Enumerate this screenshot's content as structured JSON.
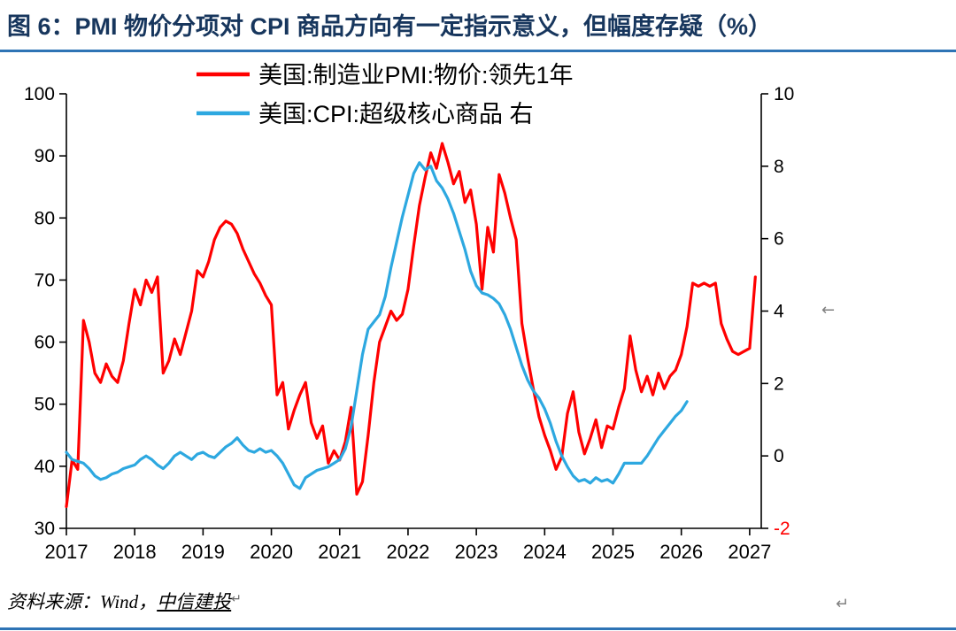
{
  "title": "图 6：PMI 物价分项对 CPI 商品方向有一定指示意义，但幅度存疑（%）",
  "source": {
    "prefix": "资料来源：Wind，",
    "link": "中信建投",
    "return_mark": "↵"
  },
  "marks": {
    "mid_right": "←",
    "bottom_right": "↵"
  },
  "colors": {
    "title": "#17365D",
    "rule": "#2E74B5",
    "pmi_line": "#FF0000",
    "cpi_line": "#2DA8E0",
    "negative_tick": "#FF0000"
  },
  "chart_data": {
    "type": "line",
    "title": "",
    "x_range": [
      2017,
      2027.17
    ],
    "x_ticks": [
      2017,
      2018,
      2019,
      2020,
      2021,
      2022,
      2023,
      2024,
      2025,
      2026,
      2027
    ],
    "left_axis": {
      "min": 30,
      "max": 100,
      "ticks": [
        30,
        40,
        50,
        60,
        70,
        80,
        90,
        100
      ]
    },
    "right_axis": {
      "min": -2,
      "max": 10,
      "ticks": [
        -2,
        0,
        2,
        4,
        6,
        8,
        10
      ],
      "negative_color": "#FF0000"
    },
    "grid": false,
    "legend_position": "top-center",
    "points_per_year": 12,
    "series": [
      {
        "name": "美国:制造业PMI:物价:领先1年",
        "axis": "left",
        "color": "#FF0000",
        "start": 2017,
        "values": [
          33.5,
          41,
          39.5,
          63.5,
          60,
          55,
          53.5,
          56.5,
          54.5,
          53.5,
          57,
          63,
          68.5,
          66,
          70,
          68,
          70.5,
          55,
          57,
          60.5,
          58,
          61.5,
          65,
          71.5,
          70.5,
          73,
          76.5,
          78.5,
          79.5,
          79,
          77.5,
          75,
          73,
          71,
          69.5,
          67.5,
          66,
          51.5,
          53.5,
          46,
          49,
          51.5,
          53.5,
          47,
          44.5,
          46.5,
          40.5,
          42.5,
          41,
          44,
          49.5,
          35.5,
          37.5,
          45,
          53.5,
          60,
          62.5,
          65,
          63.5,
          64.5,
          68.5,
          75.5,
          82,
          86.5,
          90.5,
          88,
          92,
          89,
          85.5,
          87.5,
          82.5,
          84.5,
          79,
          68.5,
          78.5,
          74.5,
          87,
          84,
          80,
          76.5,
          63,
          57.5,
          52.5,
          48,
          45,
          42.5,
          39.5,
          41.5,
          48.5,
          52,
          45.5,
          42,
          44.5,
          47.5,
          43,
          46.5,
          46,
          49.5,
          52.5,
          61,
          55.5,
          52,
          54.5,
          51.5,
          55,
          52.5,
          54.5,
          55.5,
          58,
          62.5,
          69.5,
          69,
          69.5,
          69,
          69.5,
          63,
          60.5,
          58.5,
          58,
          58.5,
          59,
          70.5
        ]
      },
      {
        "name": "美国:CPI:超级核心商品 右",
        "axis": "right",
        "color": "#2DA8E0",
        "start": 2017,
        "values": [
          0.1,
          -0.1,
          -0.15,
          -0.2,
          -0.35,
          -0.55,
          -0.65,
          -0.6,
          -0.5,
          -0.45,
          -0.35,
          -0.3,
          -0.25,
          -0.1,
          0,
          -0.1,
          -0.25,
          -0.35,
          -0.2,
          0,
          0.1,
          0,
          -0.1,
          0.05,
          0.1,
          0,
          -0.05,
          0.1,
          0.25,
          0.35,
          0.5,
          0.3,
          0.15,
          0.1,
          0.2,
          0.1,
          0.15,
          0,
          -0.2,
          -0.5,
          -0.8,
          -0.9,
          -0.6,
          -0.5,
          -0.4,
          -0.35,
          -0.3,
          -0.2,
          -0.1,
          0.2,
          0.8,
          1.8,
          2.8,
          3.5,
          3.7,
          3.9,
          4.4,
          5.2,
          5.9,
          6.6,
          7.2,
          7.8,
          8.1,
          7.9,
          8,
          7.6,
          7.4,
          7.1,
          6.7,
          6.2,
          5.7,
          5.1,
          4.7,
          4.5,
          4.45,
          4.35,
          4.2,
          3.9,
          3.5,
          3,
          2.5,
          2.1,
          1.8,
          1.6,
          1.3,
          0.9,
          0.4,
          0,
          -0.3,
          -0.55,
          -0.7,
          -0.65,
          -0.75,
          -0.6,
          -0.7,
          -0.65,
          -0.75,
          -0.5,
          -0.2,
          -0.2,
          -0.2,
          -0.2,
          0,
          0.25,
          0.5,
          0.7,
          0.9,
          1.1,
          1.25,
          1.5
        ]
      }
    ]
  }
}
